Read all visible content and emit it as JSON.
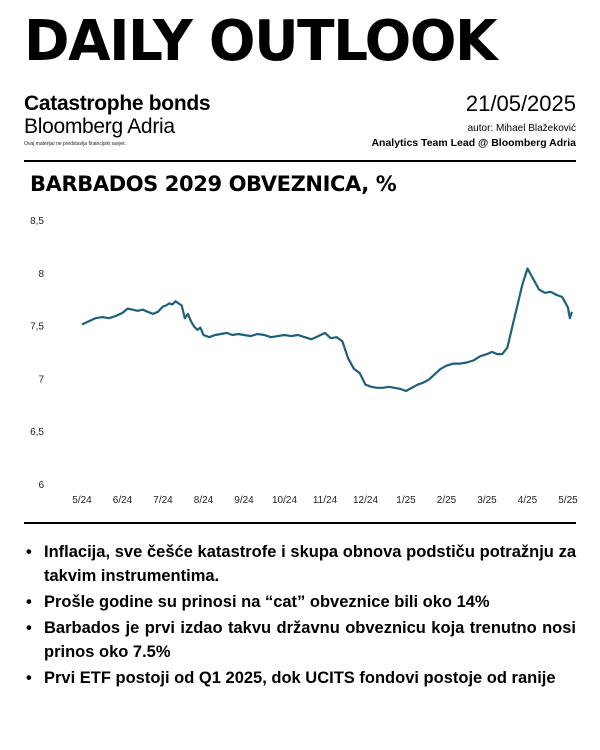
{
  "header": {
    "masthead": "DAILY OUTLOOK",
    "subtitle": "Catastrophe bonds",
    "publisher": "Bloomberg Adria",
    "disclaimer": "Ovaj materijal ne predstavlja financijski savjet.",
    "date": "21/05/2025",
    "author": "autor: Mihael Blažeković",
    "role": "Analytics Team Lead @ Bloomberg Adria"
  },
  "chart_data": {
    "type": "line",
    "title": "BARBADOS 2029 OBVEZNICA, %",
    "xlabel": "",
    "ylabel": "",
    "ylim": [
      6,
      8.5
    ],
    "yticks": [
      "8,5",
      "8",
      "7,5",
      "7",
      "6,5",
      "6"
    ],
    "xticks": [
      "5/24",
      "6/24",
      "7/24",
      "8/24",
      "9/24",
      "10/24",
      "11/24",
      "12/24",
      "1/25",
      "2/25",
      "3/25",
      "4/25",
      "5/25"
    ],
    "grid": false,
    "color": "#1e5f7a",
    "series": [
      {
        "values": [
          [
            "5/24",
            7.52
          ],
          [
            "5/24",
            7.55
          ],
          [
            "5/24",
            7.58
          ],
          [
            "5/24",
            7.59
          ],
          [
            "5/24",
            7.58
          ],
          [
            "5/24",
            7.6
          ],
          [
            "6/24",
            7.63
          ],
          [
            "6/24",
            7.67
          ],
          [
            "6/24",
            7.66
          ],
          [
            "6/24",
            7.65
          ],
          [
            "6/24",
            7.66
          ],
          [
            "6/24",
            7.64
          ],
          [
            "6/24",
            7.62
          ],
          [
            "6/24",
            7.64
          ],
          [
            "7/24",
            7.69
          ],
          [
            "7/24",
            7.7
          ],
          [
            "7/24",
            7.72
          ],
          [
            "7/24",
            7.71
          ],
          [
            "7/24",
            7.74
          ],
          [
            "7/24",
            7.72
          ],
          [
            "7/24",
            7.7
          ],
          [
            "7/24",
            7.58
          ],
          [
            "7/24",
            7.62
          ],
          [
            "7/24",
            7.55
          ],
          [
            "7/24",
            7.5
          ],
          [
            "7/24",
            7.47
          ],
          [
            "7/24",
            7.49
          ],
          [
            "8/24",
            7.42
          ],
          [
            "8/24",
            7.4
          ],
          [
            "8/24",
            7.42
          ],
          [
            "8/24",
            7.43
          ],
          [
            "8/24",
            7.44
          ],
          [
            "8/24",
            7.42
          ],
          [
            "8/24",
            7.43
          ],
          [
            "9/24",
            7.42
          ],
          [
            "9/24",
            7.41
          ],
          [
            "9/24",
            7.43
          ],
          [
            "9/24",
            7.42
          ],
          [
            "9/24",
            7.4
          ],
          [
            "9/24",
            7.41
          ],
          [
            "10/24",
            7.42
          ],
          [
            "10/24",
            7.41
          ],
          [
            "10/24",
            7.42
          ],
          [
            "10/24",
            7.4
          ],
          [
            "10/24",
            7.38
          ],
          [
            "10/24",
            7.41
          ],
          [
            "11/24",
            7.44
          ],
          [
            "11/24",
            7.39
          ],
          [
            "11/24",
            7.4
          ],
          [
            "11/24",
            7.36
          ],
          [
            "11/24",
            7.2
          ],
          [
            "11/24",
            7.1
          ],
          [
            "11/24",
            7.06
          ],
          [
            "12/24",
            6.95
          ],
          [
            "12/24",
            6.93
          ],
          [
            "12/24",
            6.92
          ],
          [
            "12/24",
            6.92
          ],
          [
            "12/24",
            6.93
          ],
          [
            "12/24",
            6.92
          ],
          [
            "12/24",
            6.91
          ],
          [
            "1/25",
            6.89
          ],
          [
            "1/25",
            6.92
          ],
          [
            "1/25",
            6.95
          ],
          [
            "1/25",
            6.97
          ],
          [
            "1/25",
            7.0
          ],
          [
            "1/25",
            7.05
          ],
          [
            "1/25",
            7.1
          ],
          [
            "2/25",
            7.13
          ],
          [
            "2/25",
            7.15
          ],
          [
            "2/25",
            7.15
          ],
          [
            "2/25",
            7.16
          ],
          [
            "2/25",
            7.18
          ],
          [
            "2/25",
            7.22
          ],
          [
            "3/25",
            7.24
          ],
          [
            "3/25",
            7.26
          ],
          [
            "3/25",
            7.24
          ],
          [
            "3/25",
            7.24
          ],
          [
            "3/25",
            7.3
          ],
          [
            "3/25",
            7.5
          ],
          [
            "3/25",
            7.7
          ],
          [
            "3/25",
            7.9
          ],
          [
            "4/25",
            8.05
          ],
          [
            "4/25",
            7.95
          ],
          [
            "4/25",
            7.85
          ],
          [
            "4/25",
            7.82
          ],
          [
            "4/25",
            7.83
          ],
          [
            "4/25",
            7.8
          ],
          [
            "4/25",
            7.78
          ],
          [
            "5/25",
            7.68
          ],
          [
            "5/25",
            7.62
          ],
          [
            "5/25",
            7.58
          ],
          [
            "5/25",
            7.61
          ],
          [
            "5/25",
            7.64
          ]
        ]
      }
    ]
  },
  "bullets": [
    "Inflacija, sve češće katastrofe i skupa obnova podstiču potražnju za takvim instrumentima.",
    " Prošle godine su prinosi na “cat” obveznice bili oko 14%",
    "Barbados je prvi izdao takvu državnu obveznicu koja trenutno nosi prinos oko 7.5%",
    "Prvi ETF postoji od Q1 2025, dok UCITS fondovi postoje od ranije"
  ],
  "bullet_glyph": "•"
}
